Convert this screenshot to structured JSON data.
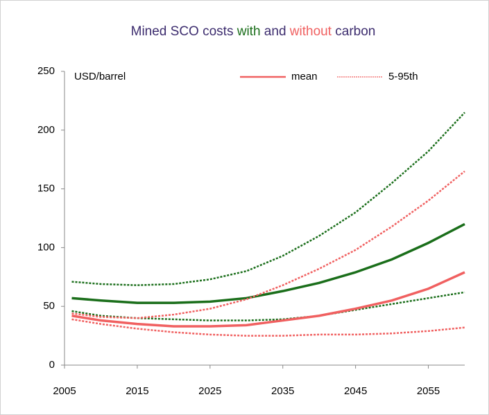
{
  "chart_data": {
    "type": "line",
    "title_parts": [
      {
        "text": "Mined SCO  costs ",
        "color": "#3c2c6e"
      },
      {
        "text": "with",
        "color": "#1a6e1a"
      },
      {
        "text": " and ",
        "color": "#3c2c6e"
      },
      {
        "text": "without",
        "color": "#f06060"
      },
      {
        "text": " carbon",
        "color": "#3c2c6e"
      }
    ],
    "y_axis_label": "USD/barrel",
    "x": [
      2006,
      2010,
      2015,
      2020,
      2025,
      2030,
      2035,
      2040,
      2045,
      2050,
      2055,
      2060
    ],
    "xlim": [
      2005,
      2060
    ],
    "xticks": [
      2005,
      2015,
      2025,
      2035,
      2045,
      2055
    ],
    "ylim": [
      0,
      250
    ],
    "yticks": [
      0,
      50,
      100,
      150,
      200,
      250
    ],
    "legend": [
      {
        "label": "mean",
        "style": "solid",
        "color": "#f06060"
      },
      {
        "label": "5-95th",
        "style": "dotted",
        "color": "#f06060"
      }
    ],
    "series": [
      {
        "color": "#1a6e1a",
        "style": "solid",
        "values": [
          57,
          55,
          53,
          53,
          54,
          57,
          63,
          70,
          79,
          90,
          104,
          120
        ]
      },
      {
        "color": "#1a6e1a",
        "style": "dotted",
        "values": [
          71,
          69,
          68,
          69,
          73,
          80,
          93,
          110,
          130,
          155,
          182,
          215
        ]
      },
      {
        "color": "#1a6e1a",
        "style": "dotted",
        "values": [
          46,
          42,
          40,
          39,
          38,
          38,
          39,
          42,
          47,
          52,
          57,
          62
        ]
      },
      {
        "color": "#f06060",
        "style": "solid",
        "values": [
          42,
          38,
          35,
          33,
          33,
          34,
          38,
          42,
          48,
          55,
          65,
          79
        ]
      },
      {
        "color": "#f06060",
        "style": "dotted",
        "values": [
          44,
          41,
          40,
          43,
          48,
          56,
          68,
          82,
          98,
          118,
          140,
          165
        ]
      },
      {
        "color": "#f06060",
        "style": "dotted",
        "values": [
          39,
          35,
          31,
          28,
          26,
          25,
          25,
          26,
          26,
          27,
          29,
          32
        ]
      }
    ]
  }
}
